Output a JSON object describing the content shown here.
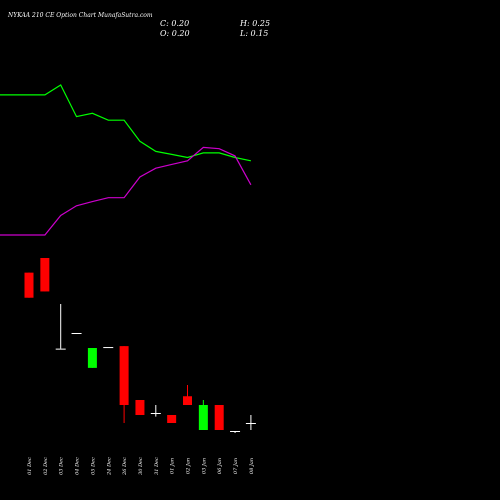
{
  "header": {
    "title": "NYKAA 210  CE Option  Chart MunafaSutra.com",
    "close": "C: 0.20",
    "high": "H: 0.25",
    "open": "O: 0.20",
    "low": "L: 0.15"
  },
  "colors": {
    "background": "#000000",
    "up": "#00ff00",
    "down": "#ff0000",
    "neutral": "#ffffff",
    "line_green": "#00ff00",
    "line_magenta": "#cc00cc",
    "label": "#ffffff"
  },
  "chart_data": {
    "type": "candlestick",
    "title": "NYKAA 210  CE Option  Chart MunafaSutra.com",
    "x_labels": [
      "01 Dec",
      "02 Dec",
      "03 Dec",
      "04 Dec",
      "05 Dec",
      "24 Dec",
      "26 Dec",
      "30 Dec",
      "31 Dec",
      "01 Jan",
      "02 Jan",
      "03 Jan",
      "06 Jan",
      "07 Jan",
      "08 Jan"
    ],
    "candles": [
      {
        "date": "01 Dec",
        "open": 5.5,
        "high": 5.5,
        "low": 4.3,
        "close": 4.3,
        "color": "red"
      },
      {
        "date": "02 Dec",
        "open": 6.2,
        "high": 6.2,
        "low": 4.6,
        "close": 4.6,
        "color": "red"
      },
      {
        "date": "03 Dec",
        "open": 2.15,
        "high": 4.0,
        "low": 2.15,
        "close": 2.15,
        "color": "white"
      },
      {
        "date": "04 Dec",
        "open": 3.0,
        "high": 3.0,
        "low": 3.0,
        "close": 3.0,
        "color": "white"
      },
      {
        "date": "05 Dec",
        "open": 0.9,
        "high": 2.2,
        "low": 0.9,
        "close": 2.2,
        "color": "green"
      },
      {
        "date": "24 Dec",
        "open": 2.25,
        "high": 2.25,
        "low": 2.25,
        "close": 2.25,
        "color": "white"
      },
      {
        "date": "26 Dec",
        "open": 2.3,
        "high": 2.3,
        "low": 0.2,
        "close": 0.3,
        "color": "red"
      },
      {
        "date": "30 Dec",
        "open": 0.35,
        "high": 0.35,
        "low": 0.25,
        "close": 0.25,
        "color": "red"
      },
      {
        "date": "31 Dec",
        "open": 0.26,
        "high": 0.3,
        "low": 0.24,
        "close": 0.26,
        "color": "white"
      },
      {
        "date": "01 Jan",
        "open": 0.25,
        "high": 0.25,
        "low": 0.2,
        "close": 0.2,
        "color": "red"
      },
      {
        "date": "02 Jan",
        "open": 0.4,
        "high": 0.55,
        "low": 0.3,
        "close": 0.3,
        "color": "red"
      },
      {
        "date": "03 Jan",
        "open": 0.15,
        "high": 0.35,
        "low": 0.15,
        "close": 0.3,
        "color": "green"
      },
      {
        "date": "06 Jan",
        "open": 0.3,
        "high": 0.3,
        "low": 0.15,
        "close": 0.15,
        "color": "red"
      },
      {
        "date": "07 Jan",
        "open": 0.14,
        "high": 0.14,
        "low": 0.12,
        "close": 0.14,
        "color": "white"
      },
      {
        "date": "08 Jan",
        "open": 0.2,
        "high": 0.25,
        "low": 0.15,
        "close": 0.2,
        "color": "white"
      }
    ],
    "series": [
      {
        "color": "#00ff00",
        "values": [
          1.1,
          1.1,
          1.35,
          0.7,
          0.75,
          0.65,
          0.65,
          0.42,
          0.34,
          0.32,
          0.3,
          0.33,
          0.33,
          0.3,
          0.28
        ]
      },
      {
        "color": "#cc00cc",
        "values": [
          0.06,
          0.06,
          0.09,
          0.11,
          0.12,
          0.13,
          0.13,
          0.2,
          0.24,
          0.26,
          0.28,
          0.37,
          0.36,
          0.31,
          0.17
        ]
      }
    ]
  }
}
